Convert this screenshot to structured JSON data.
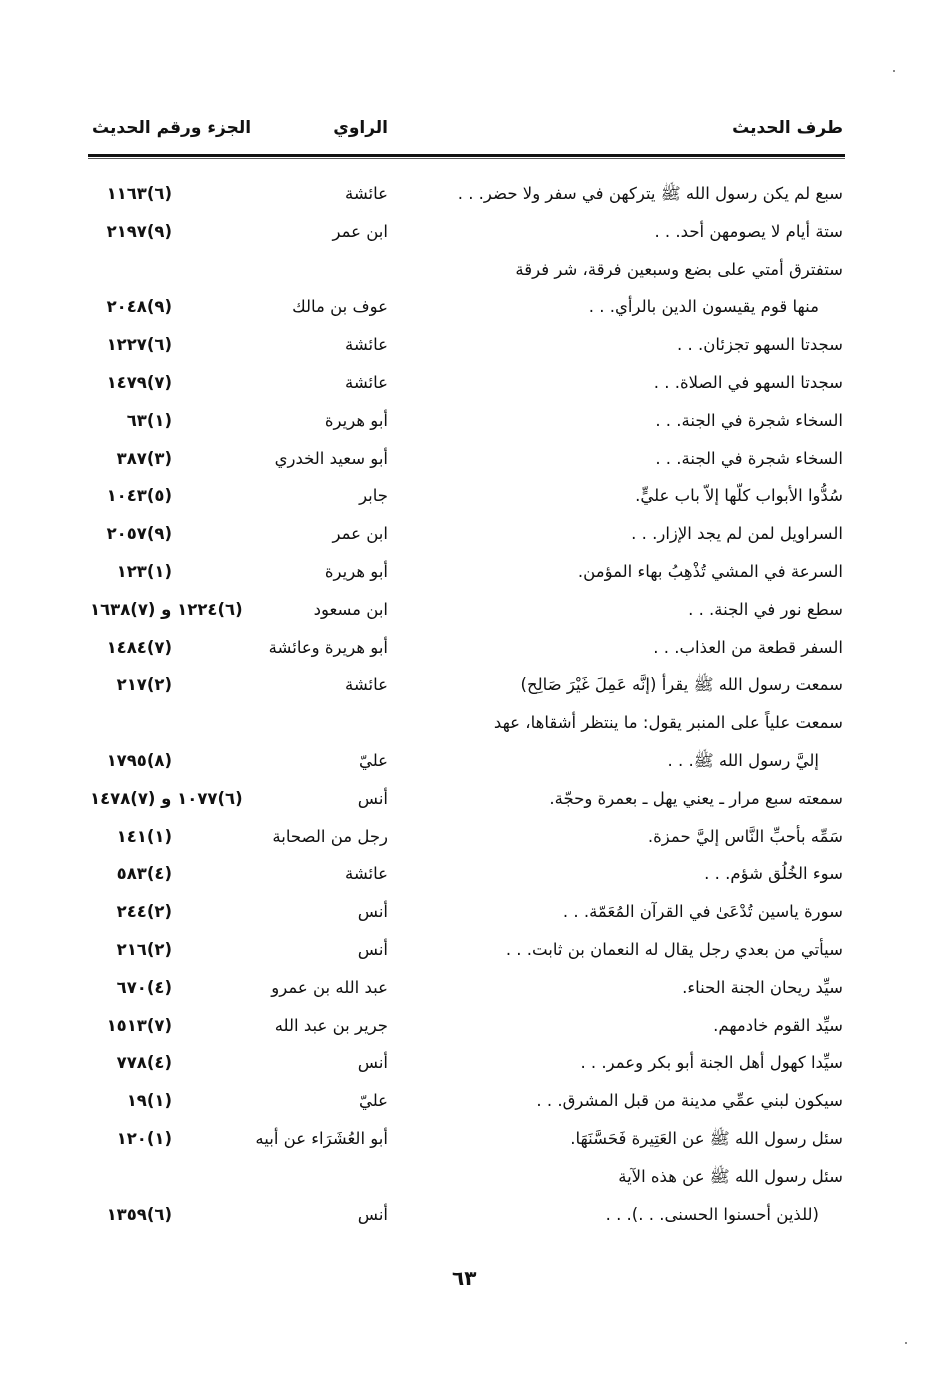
{
  "header": {
    "col_hadith": "طرف الحديث",
    "col_narrator": "الراوي",
    "col_ref": "الجزء ورقم الحديث"
  },
  "rows": [
    {
      "lines": [
        "سبع لم يكن رسول الله ﷺ يتركهن في سفر ولا حضر. . ."
      ],
      "narrator": "عائشة",
      "ref": "١١٦٣(٦)"
    },
    {
      "lines": [
        "ستة أيام لا يصومهن أحد. . ."
      ],
      "narrator": "ابن عمر",
      "ref": "٢١٩٧(٩)"
    },
    {
      "lines": [
        "ستفترق أمتي على بضع وسبعين فرقة، شر فرقة",
        "منها قوم يقيسون الدين بالرأي. . ."
      ],
      "narrator": "عوف بن مالك",
      "ref": "٢٠٤٨(٩)"
    },
    {
      "lines": [
        "سجدتا السهو تجزئان. . ."
      ],
      "narrator": "عائشة",
      "ref": "١٢٢٧(٦)"
    },
    {
      "lines": [
        "سجدتا السهو في الصلاة. . ."
      ],
      "narrator": "عائشة",
      "ref": "١٤٧٩(٧)"
    },
    {
      "lines": [
        "السخاء شجرة في الجنة. . ."
      ],
      "narrator": "أبو هريرة",
      "ref": "٦٣(١)"
    },
    {
      "lines": [
        "السخاء شجرة في الجنة. . ."
      ],
      "narrator": "أبو سعيد الخدري",
      "ref": "٣٨٧(٣)"
    },
    {
      "lines": [
        "سُدُّوا الأبواب كلّها إلاّ باب عليٍّ."
      ],
      "narrator": "جابر",
      "ref": "١٠٤٣(٥)"
    },
    {
      "lines": [
        "السراويل لمن لم يجد الإزار. . ."
      ],
      "narrator": "ابن عمر",
      "ref": "٢٠٥٧(٩)"
    },
    {
      "lines": [
        "السرعة في المشي تُذْهِبُ بهاء المؤمن."
      ],
      "narrator": "أبو هريرة",
      "ref": "١٢٣(١)"
    },
    {
      "lines": [
        "سطع نور في الجنة. . ."
      ],
      "narrator": "ابن مسعود",
      "ref": "١٦٣٨(٧) و ١٢٢٤(٦)"
    },
    {
      "lines": [
        "السفر قطعة من العذاب. . ."
      ],
      "narrator": "أبو هريرة وعائشة",
      "ref": "١٤٨٤(٧)"
    },
    {
      "lines": [
        "سمعت رسول الله ﷺ يقرأ (إنَّه عَمِلَ غَيْرَ صَالِح)"
      ],
      "narrator": "عائشة",
      "ref": "٢١٧(٢)"
    },
    {
      "lines": [
        "سمعت علياً على المنبر يقول: ما ينتظر أشقاها، عهد",
        "إليَّ رسول الله ﷺ. . ."
      ],
      "narrator": "عليّ",
      "ref": "١٧٩٥(٨)"
    },
    {
      "lines": [
        "سمعته سبع مرار ـ يعني يهل ـ بعمرة وحجّة."
      ],
      "narrator": "أنس",
      "ref": "١٤٧٨(٧) و ١٠٧٧(٦)"
    },
    {
      "lines": [
        "سَمِّه بأحبِّ النَّاس إليَّ حمزة."
      ],
      "narrator": "رجل من الصحابة",
      "ref": "١٤١(١)"
    },
    {
      "lines": [
        "سوء الخُلُق شؤم. . ."
      ],
      "narrator": "عائشة",
      "ref": "٥٨٣(٤)"
    },
    {
      "lines": [
        "سورة ياسين تُدْعَىٰ في القرآن المُعَمّة. . ."
      ],
      "narrator": "أنس",
      "ref": "٢٤٤(٢)"
    },
    {
      "lines": [
        "سيأتي من بعدي رجل يقال له النعمان بن ثابت. . ."
      ],
      "narrator": "أنس",
      "ref": "٢١٦(٢)"
    },
    {
      "lines": [
        "سيِّد ريحان الجنة الحناء."
      ],
      "narrator": "عبد الله بن عمرو",
      "ref": "٦٧٠(٤)"
    },
    {
      "lines": [
        "سيِّد القوم خادمهم."
      ],
      "narrator": "جرير بن عبد الله",
      "ref": "١٥١٣(٧)"
    },
    {
      "lines": [
        "سيِّدا كهول أهل الجنة أبو بكر وعمر. . ."
      ],
      "narrator": "أنس",
      "ref": "٧٧٨(٤)"
    },
    {
      "lines": [
        "سيكون لبني عمِّي مدينة من قبل المشرق. . ."
      ],
      "narrator": "عليّ",
      "ref": "١٩(١)"
    },
    {
      "lines": [
        "سئل رسول الله ﷺ عن العَتِيرة فَحَسَّنَهَا."
      ],
      "narrator": "أبو العُشَرَاء عن أبيه",
      "ref": "١٢٠(١)"
    },
    {
      "lines": [
        "سئل رسول الله ﷺ عن هذه الآية",
        "(للذين أحسنوا الحسنى. . .). . ."
      ],
      "narrator": "أنس",
      "ref": "١٣٥٩(٦)"
    }
  ],
  "page_number": "٦٣"
}
